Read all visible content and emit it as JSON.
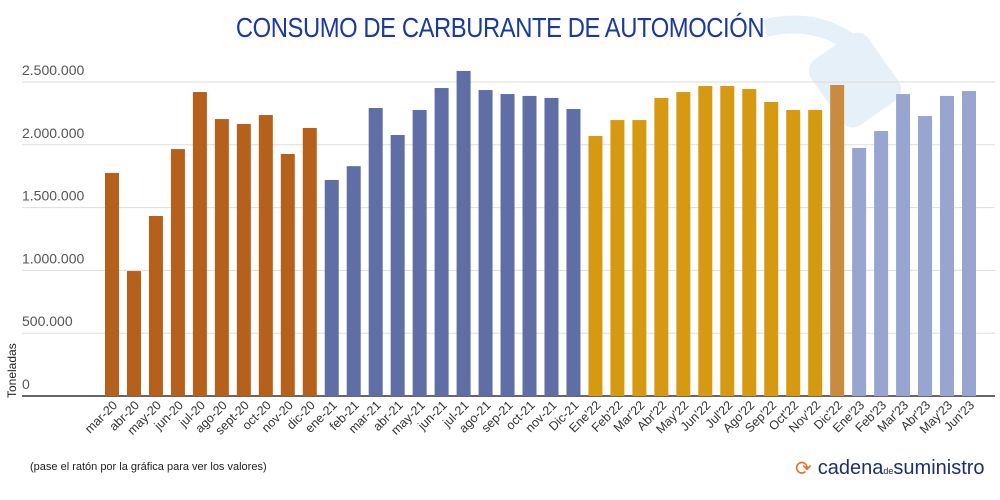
{
  "chart_data": {
    "type": "bar",
    "title": "CONSUMO DE CARBURANTE DE AUTOMOCIÓN",
    "ylabel": "Toneladas",
    "xlabel": "",
    "ylim": [
      0,
      2500000
    ],
    "yticks": [
      "0",
      "500.000",
      "1.000.000",
      "1.500.000",
      "2.000.000",
      "2.500.000"
    ],
    "grid": true,
    "categories": [
      "mar-20",
      "abr-20",
      "may-20",
      "jun-20",
      "jul-20",
      "ago-20",
      "sept-20",
      "oct-20",
      "nov-20",
      "dic-20",
      "ene-21",
      "feb-21",
      "mar-21",
      "abr-21",
      "may-21",
      "jun-21",
      "jul-21",
      "ago-21",
      "sep-21",
      "oct-21",
      "nov-21",
      "Dic-21",
      "Ene'22",
      "Feb'22",
      "Mar'22",
      "Abr'22",
      "May'22",
      "Jun'22",
      "Jul'22",
      "Ago'22",
      "Sep'22",
      "Oct'22",
      "Nov'22",
      "Dic'22",
      "Ene'23",
      "Feb'23",
      "Mar'23",
      "Abr'23",
      "May'23",
      "Jun'23"
    ],
    "values": [
      1776000,
      995000,
      1433000,
      1966000,
      2420000,
      2205000,
      2166000,
      2237000,
      1927000,
      2134000,
      1720000,
      1830000,
      2293000,
      2078000,
      2277000,
      2452000,
      2588000,
      2436000,
      2404000,
      2389000,
      2373000,
      2285000,
      2070000,
      2197000,
      2197000,
      2373000,
      2420000,
      2468000,
      2468000,
      2444000,
      2341000,
      2277000,
      2277000,
      2476000,
      1975000,
      2110000,
      2404000,
      2229000,
      2389000,
      2428000
    ],
    "colors": [
      "#b5611c",
      "#b5611c",
      "#b5611c",
      "#b5611c",
      "#b5611c",
      "#b5611c",
      "#b5611c",
      "#b5611c",
      "#b5611c",
      "#b5611c",
      "#5f6fa5",
      "#5f6fa5",
      "#5f6fa5",
      "#5f6fa5",
      "#5f6fa5",
      "#5f6fa5",
      "#5f6fa5",
      "#5f6fa5",
      "#5f6fa5",
      "#5f6fa5",
      "#5f6fa5",
      "#5f6fa5",
      "#d69a12",
      "#d69a12",
      "#d69a12",
      "#d69a12",
      "#d69a12",
      "#d69a12",
      "#d69a12",
      "#d69a12",
      "#d69a12",
      "#d69a12",
      "#d69a12",
      "#c98c3e",
      "#98a5d0",
      "#98a5d0",
      "#98a5d0",
      "#98a5d0",
      "#98a5d0",
      "#98a5d0"
    ]
  },
  "note": "(pase el ratón por la gráfica para ver los valores)",
  "logo": {
    "part1": "cadena",
    "part2": "de",
    "part3": "suministro"
  }
}
